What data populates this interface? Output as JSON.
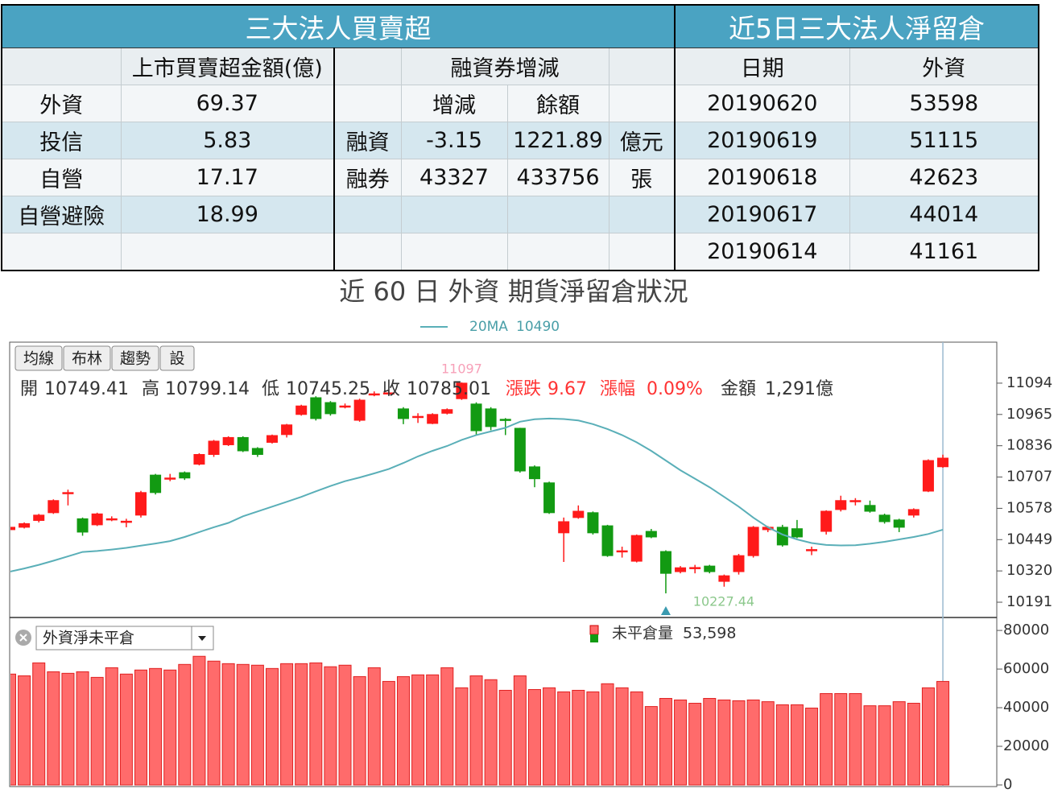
{
  "left_table": {
    "title": "三大法人買賣超",
    "amount_header": "上市買賣超金額(億)",
    "margin_header": "融資券增減",
    "rows": [
      {
        "label": "外資",
        "amount": "69.37"
      },
      {
        "label": "投信",
        "amount": "5.83"
      },
      {
        "label": "自營",
        "amount": "17.17"
      },
      {
        "label": "自營避險",
        "amount": "18.99"
      }
    ],
    "margin": {
      "columns": [
        "增減",
        "餘額"
      ],
      "rows": [
        {
          "label": "融資",
          "change": "-3.15",
          "balance": "1221.89",
          "unit": "億元"
        },
        {
          "label": "融券",
          "change": "43327",
          "balance": "433756",
          "unit": "張"
        }
      ]
    }
  },
  "right_table": {
    "title": "近5日三大法人淨留倉",
    "columns": [
      "日期",
      "外資"
    ],
    "rows": [
      [
        "20190620",
        "53598"
      ],
      [
        "20190619",
        "51115"
      ],
      [
        "20190618",
        "42623"
      ],
      [
        "20190617",
        "44014"
      ],
      [
        "20190614",
        "41161"
      ]
    ]
  },
  "chart_data": {
    "type": "candlestick",
    "title": "近 60 日 外資 期貨淨留倉狀況",
    "buttons": [
      "均線",
      "布林",
      "趨勢",
      "設"
    ],
    "info": {
      "open_label": "開",
      "high_label": "高",
      "low_label": "低",
      "close_label": "收",
      "change_label": "漲跌",
      "change": 9.67,
      "pct_label": "漲幅",
      "pct": "0.09%",
      "amount_label": "金額",
      "amount": "1,291億"
    },
    "up_color": "#ff1a1a",
    "down_color": "#129a12",
    "ylim": [
      10128,
      11263
    ],
    "yticks": [
      11094,
      10965,
      10836,
      10707,
      10578,
      10449,
      10320,
      10191
    ],
    "candles": {
      "open": [
        10490,
        10500,
        10528,
        10560,
        10640,
        10535,
        10510,
        10533,
        10523,
        10550,
        10715,
        10700,
        10725,
        10760,
        10800,
        10840,
        10870,
        10825,
        10850,
        10882,
        10965,
        11034,
        11014,
        10997,
        10941,
        11047,
        11050,
        10988,
        10955,
        10928,
        10970,
        11030,
        11008,
        10988,
        10945,
        10908,
        10749,
        10683,
        10477,
        10540,
        10560,
        10506,
        10400,
        10360,
        10483,
        10400,
        10317,
        10332,
        10340,
        10277,
        10317,
        10383,
        10490,
        10500,
        10494,
        10405,
        10483,
        10573,
        10608,
        10590,
        10550,
        10530,
        10550,
        10649,
        10749.41
      ],
      "high": [
        10505,
        10520,
        10555,
        10615,
        10655,
        10540,
        10560,
        10545,
        10535,
        10650,
        10720,
        10720,
        10730,
        10805,
        10860,
        10875,
        10875,
        10830,
        10882,
        10926,
        11005,
        11040,
        11020,
        11010,
        11030,
        11060,
        11062,
        10995,
        10970,
        10970,
        10990,
        11097,
        11015,
        10995,
        10950,
        10910,
        10755,
        10688,
        10540,
        10590,
        10565,
        10510,
        10420,
        10470,
        10493,
        10405,
        10340,
        10345,
        10345,
        10305,
        10390,
        10505,
        10505,
        10510,
        10530,
        10420,
        10570,
        10630,
        10620,
        10610,
        10556,
        10535,
        10578,
        10780,
        10799.14
      ],
      "low": [
        10470,
        10495,
        10520,
        10555,
        10590,
        10465,
        10505,
        10525,
        10500,
        10540,
        10635,
        10690,
        10695,
        10755,
        10790,
        10835,
        10810,
        10790,
        10845,
        10870,
        10960,
        10940,
        10960,
        10990,
        10935,
        11040,
        11045,
        10925,
        10930,
        10925,
        10965,
        11025,
        10880,
        10900,
        10880,
        10725,
        10665,
        10555,
        10357,
        10535,
        10470,
        10378,
        10375,
        10355,
        10455,
        10227.44,
        10310,
        10310,
        10310,
        10255,
        10305,
        10375,
        10480,
        10420,
        10455,
        10385,
        10470,
        10565,
        10590,
        10560,
        10515,
        10480,
        10540,
        10645,
        10745.25
      ],
      "close": [
        10500,
        10515,
        10550,
        10610,
        10643,
        10480,
        10555,
        10535,
        10525,
        10643,
        10643,
        10703,
        10703,
        10800,
        10855,
        10870,
        10815,
        10800,
        10878,
        10922,
        11000,
        10948,
        10968,
        11000,
        11024,
        11050,
        11054,
        10948,
        10957,
        10965,
        10985,
        11094,
        10898,
        10915,
        10940,
        10732,
        10700,
        10560,
        10523,
        10566,
        10477,
        10383,
        10403,
        10466,
        10460,
        10310,
        10333,
        10334,
        10317,
        10300,
        10383,
        10500,
        10500,
        10427,
        10460,
        10408,
        10566,
        10610,
        10610,
        10566,
        10523,
        10500,
        10573,
        10775,
        10785.01
      ]
    },
    "ma": {
      "name": "20MA",
      "color": "#5aafb8",
      "values": [
        10317,
        10330,
        10345,
        10362,
        10380,
        10398,
        10402,
        10408,
        10415,
        10424,
        10433,
        10443,
        10460,
        10480,
        10500,
        10518,
        10545,
        10565,
        10585,
        10605,
        10625,
        10648,
        10670,
        10690,
        10705,
        10722,
        10740,
        10765,
        10792,
        10815,
        10835,
        10860,
        10880,
        10895,
        10910,
        10935,
        10945,
        10948,
        10946,
        10940,
        10925,
        10905,
        10880,
        10850,
        10815,
        10775,
        10735,
        10700,
        10665,
        10625,
        10585,
        10540,
        10500,
        10470,
        10450,
        10435,
        10427,
        10425,
        10426,
        10432,
        10440,
        10450,
        10460,
        10472,
        10490
      ]
    },
    "oi": {
      "selector": "外資淨未平倉",
      "name": "未平倉量",
      "legend_value": "53,598",
      "color": "#ff6b6b",
      "ylim": [
        0,
        86700
      ],
      "yticks": [
        80000,
        60000,
        40000,
        20000,
        0
      ],
      "values": [
        57400,
        56500,
        63200,
        58600,
        57800,
        58600,
        55700,
        60700,
        57400,
        59500,
        60300,
        59500,
        62400,
        66600,
        64100,
        62800,
        62400,
        62000,
        60300,
        62800,
        62800,
        63200,
        61200,
        62000,
        56100,
        60700,
        53600,
        56100,
        57000,
        57000,
        60700,
        50300,
        56500,
        54500,
        49000,
        56500,
        49400,
        50300,
        48200,
        49000,
        48200,
        52400,
        50300,
        48200,
        40600,
        44800,
        44000,
        42300,
        44800,
        44000,
        43600,
        44000,
        43100,
        41500,
        41500,
        39800,
        47300,
        47300,
        47300,
        41000,
        41000,
        43100,
        42300,
        50300,
        53598
      ]
    },
    "grid": false
  }
}
